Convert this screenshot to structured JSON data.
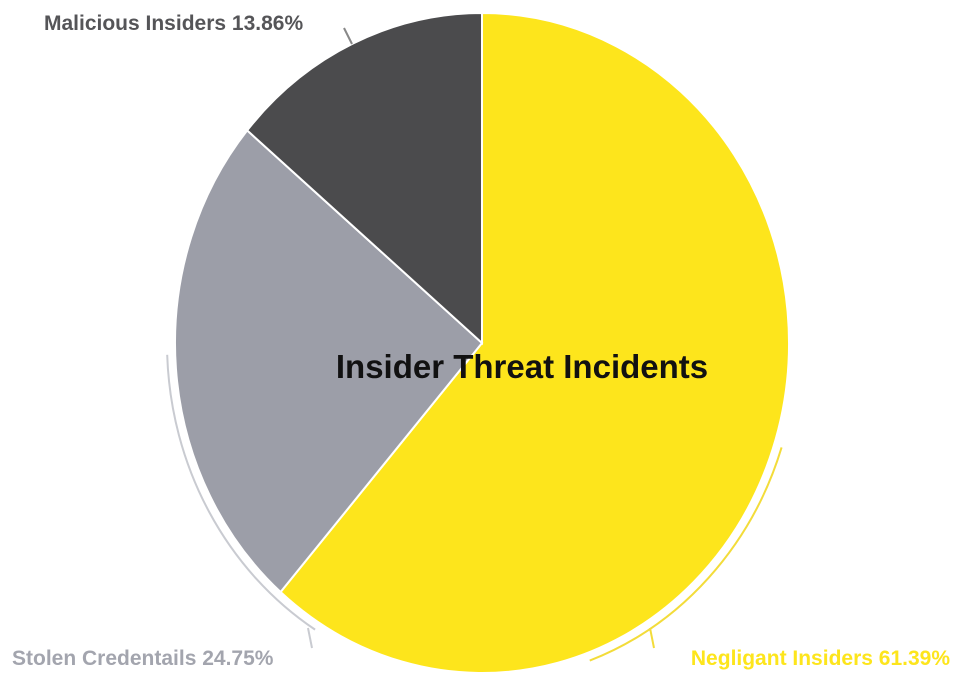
{
  "chart_data": {
    "type": "pie",
    "title": "Insider Threat Incidents",
    "slices": [
      {
        "label": "Negligant Insiders 61.39%",
        "value": 61.39,
        "color": "#fde51c",
        "label_color": "#fde51c"
      },
      {
        "label": "Stolen Credentails 24.75%",
        "value": 24.75,
        "color": "#9c9ea8",
        "label_color": "#a3a5ae"
      },
      {
        "label": "Malicious Insiders 13.86%",
        "value": 13.86,
        "color": "#4b4b4d",
        "label_color": "#555558"
      }
    ],
    "start_angle": "12 o'clock",
    "direction": "clockwise",
    "legend": "none"
  }
}
